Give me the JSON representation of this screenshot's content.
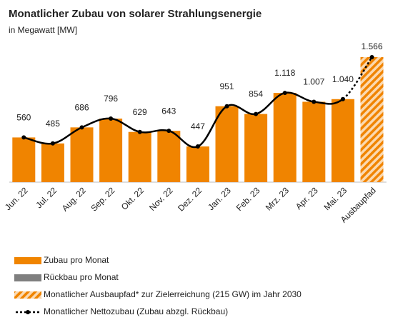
{
  "chart_data": {
    "type": "bar",
    "title": "Monatlicher Zubau von solarer Strahlungsenergie",
    "subtitle": "in Megawatt [MW]",
    "categories": [
      "Jun. 22",
      "Jul. 22",
      "Aug. 22",
      "Sep. 22",
      "Okt. 22",
      "Nov. 22",
      "Dez. 22",
      "Jan. 23",
      "Feb. 23",
      "Mrz. 23",
      "Apr. 23",
      "Mai. 23",
      "Ausbaupfad"
    ],
    "series": [
      {
        "name": "Zubau pro Monat",
        "color": "#f08400",
        "values": [
          560,
          485,
          686,
          796,
          629,
          643,
          447,
          951,
          854,
          1118,
          1007,
          1040,
          null
        ],
        "value_labels": [
          "560",
          "485",
          "686",
          "796",
          "629",
          "643",
          "447",
          "951",
          "854",
          "1.118",
          "1.007",
          "1.040",
          null
        ]
      },
      {
        "name": "Rückbau pro Monat",
        "color": "#7f7f7f"
      },
      {
        "name": "Monatlicher Ausbaupfad* zur Zielerreichung (215 GW) im Jahr 2030",
        "color": "#f08400",
        "hatched": true,
        "values": [
          null,
          null,
          null,
          null,
          null,
          null,
          null,
          null,
          null,
          null,
          null,
          null,
          1566
        ],
        "value_labels": [
          null,
          null,
          null,
          null,
          null,
          null,
          null,
          null,
          null,
          null,
          null,
          null,
          "1.566"
        ]
      },
      {
        "name": "Monatlicher Nettozubau (Zubau abzgl. Rückbau)",
        "color": "#000000",
        "line": true,
        "values": [
          560,
          485,
          686,
          796,
          629,
          643,
          447,
          951,
          854,
          1118,
          1007,
          1040,
          1566
        ]
      }
    ]
  }
}
